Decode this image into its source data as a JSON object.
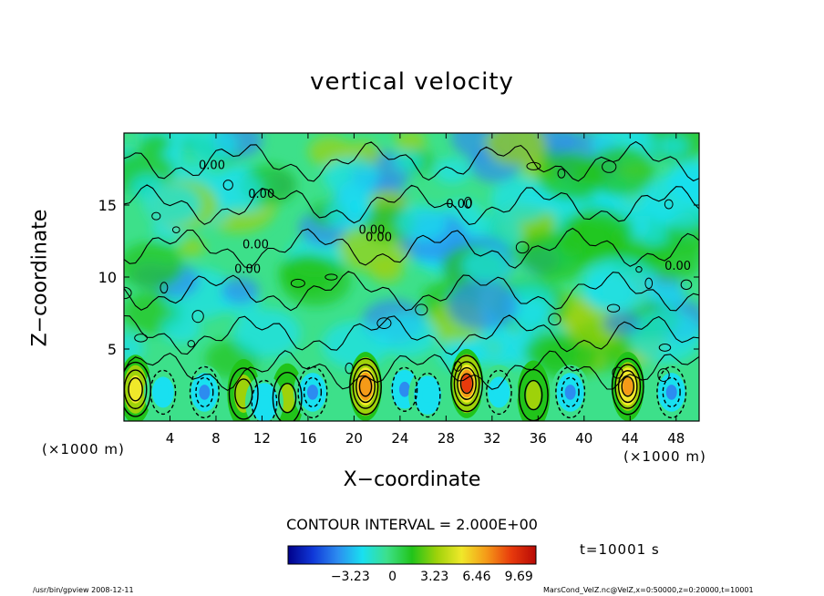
{
  "chart_data": {
    "type": "heatmap",
    "title": "vertical velocity",
    "xlabel": "X−coordinate",
    "ylabel": "Z−coordinate",
    "x_unit": "(×1000 m)",
    "y_unit": "",
    "xlim": [
      0,
      50
    ],
    "ylim": [
      0,
      20
    ],
    "x_ticks": [
      4,
      8,
      12,
      16,
      20,
      24,
      28,
      32,
      36,
      40,
      44,
      48
    ],
    "y_ticks": [
      5,
      10,
      15
    ],
    "contour_interval": "CONTOUR INTERVAL = 2.000E+00",
    "contour_labels": [
      "0.00",
      "0.00",
      "0.00",
      "0.00",
      "0.00",
      "0.00",
      "0.00",
      "0.00"
    ],
    "colorbar_ticks": [
      "−3.23",
      "0",
      "3.23",
      "6.46",
      "9.69"
    ],
    "colorbar_range": [
      -8,
      11
    ],
    "colors": [
      "#00008a",
      "#1038d8",
      "#2c8cf0",
      "#19e0f0",
      "#3de08a",
      "#21c41a",
      "#9ed20a",
      "#f0e82a",
      "#f59a18",
      "#e83a0c",
      "#b80a06"
    ],
    "updraft_cells": [
      {
        "x": 1.0,
        "z": 2.2,
        "peak": 7.2
      },
      {
        "x": 10.4,
        "z": 1.9,
        "peak": 4.6
      },
      {
        "x": 14.2,
        "z": 1.6,
        "peak": 4.0
      },
      {
        "x": 21.0,
        "z": 2.4,
        "peak": 9.2
      },
      {
        "x": 29.8,
        "z": 2.6,
        "peak": 9.69
      },
      {
        "x": 35.6,
        "z": 1.8,
        "peak": 4.2
      },
      {
        "x": 43.8,
        "z": 2.4,
        "peak": 8.0
      }
    ],
    "downdraft_cells": [
      {
        "x": 3.4,
        "z": 2.0,
        "peak": -3.0
      },
      {
        "x": 7.0,
        "z": 2.0,
        "peak": -4.5
      },
      {
        "x": 12.2,
        "z": 1.3,
        "peak": -3.2
      },
      {
        "x": 16.4,
        "z": 2.0,
        "peak": -4.0
      },
      {
        "x": 24.4,
        "z": 2.2,
        "peak": -3.8
      },
      {
        "x": 26.4,
        "z": 1.8,
        "peak": -3.2
      },
      {
        "x": 32.6,
        "z": 2.0,
        "peak": -2.8
      },
      {
        "x": 38.8,
        "z": 2.0,
        "peak": -4.0
      },
      {
        "x": 47.6,
        "z": 2.0,
        "peak": -4.2
      }
    ]
  },
  "time_label": "t=10001 s",
  "footer": {
    "left": "/usr/bin/gpview   2008-12-11",
    "right": "MarsCond_VelZ.nc@VelZ,x=0:50000,z=0:20000,t=10001"
  }
}
